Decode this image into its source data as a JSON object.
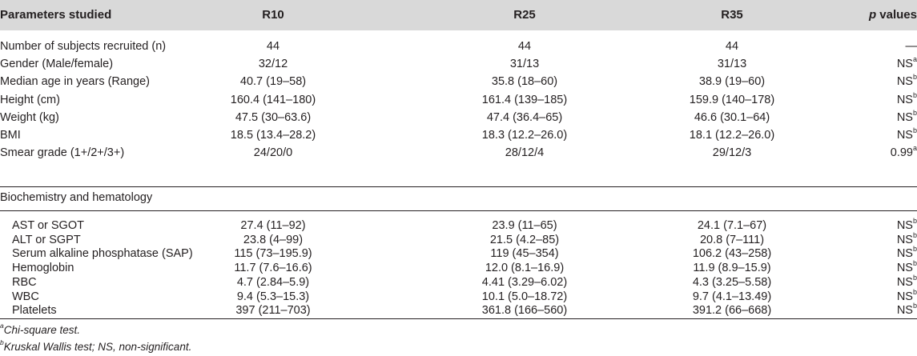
{
  "columns": {
    "param": "Parameters studied",
    "r10": "R10",
    "r25": "R25",
    "r35": "R35",
    "p_italic": "p",
    "p_rest": " values"
  },
  "rows": [
    {
      "label": "Number of subjects recruited (n)",
      "r10": "44",
      "r25": "44",
      "r35": "44",
      "p": "—",
      "sup": ""
    },
    {
      "label": "Gender (Male/female)",
      "r10": "32/12",
      "r25": "31/13",
      "r35": "31/13",
      "p": "NS",
      "sup": "a"
    },
    {
      "label": "Median age in years (Range)",
      "r10": "40.7 (19–58)",
      "r25": "35.8 (18–60)",
      "r35": "38.9 (19–60)",
      "p": "NS",
      "sup": "b"
    },
    {
      "label": "Height (cm)",
      "r10": "160.4 (141–180)",
      "r25": "161.4 (139–185)",
      "r35": "159.9 (140–178)",
      "p": "NS",
      "sup": "b"
    },
    {
      "label": "Weight (kg)",
      "r10": "47.5 (30–63.6)",
      "r25": "47.4 (36.4–65)",
      "r35": "46.6 (30.1–64)",
      "p": "NS",
      "sup": "b"
    },
    {
      "label": "BMI",
      "r10": "18.5 (13.4–28.2)",
      "r25": "18.3 (12.2–26.0)",
      "r35": "18.1 (12.2–26.0)",
      "p": "NS",
      "sup": "b"
    },
    {
      "label": "Smear grade (1+/2+/3+)",
      "r10": "24/20/0",
      "r25": "28/12/4",
      "r35": "29/12/3",
      "p": "0.99",
      "sup": "a"
    }
  ],
  "section_label": "Biochemistry and hematology",
  "bio_rows": [
    {
      "label": "AST or SGOT",
      "r10": "27.4 (11–92)",
      "r25": "23.9 (11–65)",
      "r35": "24.1 (7.1–67)",
      "p": "NS",
      "sup": "b"
    },
    {
      "label": "ALT or SGPT",
      "r10": "23.8 (4–99)",
      "r25": "21.5 (4.2–85)",
      "r35": "20.8 (7–111)",
      "p": "NS",
      "sup": "b"
    },
    {
      "label": "Serum alkaline phosphatase (SAP)",
      "r10": "115 (73–195.9)",
      "r25": "119 (45–354)",
      "r35": "106.2 (43–258)",
      "p": "NS",
      "sup": "b"
    },
    {
      "label": "Hemoglobin",
      "r10": "11.7 (7.6–16.6)",
      "r25": "12.0 (8.1–16.9)",
      "r35": "11.9 (8.9–15.9)",
      "p": "NS",
      "sup": "b"
    },
    {
      "label": "RBC",
      "r10": "4.7 (2.84–5.9)",
      "r25": "4.41 (3.29–6.02)",
      "r35": "4.3 (3.25–5.58)",
      "p": "NS",
      "sup": "b"
    },
    {
      "label": "WBC",
      "r10": "9.4 (5.3–15.3)",
      "r25": "10.1 (5.0–18.72)",
      "r35": "9.7 (4.1–13.49)",
      "p": "NS",
      "sup": "b"
    },
    {
      "label": "Platelets",
      "r10": "397 (211–703)",
      "r25": "361.8 (166–560)",
      "r35": "391.2 (66–668)",
      "p": "NS",
      "sup": "b"
    }
  ],
  "footnotes": [
    {
      "sup": "a",
      "text": "Chi-square test."
    },
    {
      "sup": "b",
      "text": "Kruskal Wallis test; NS, non-significant."
    }
  ]
}
